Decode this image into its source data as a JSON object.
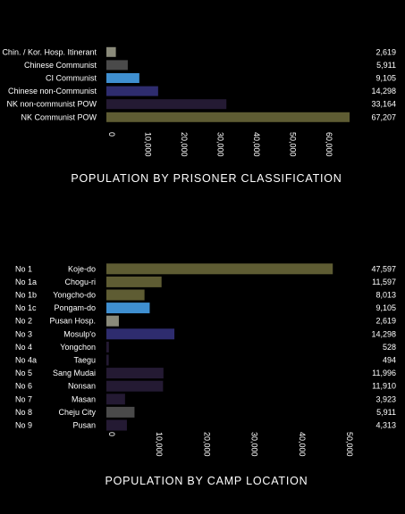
{
  "chart_data": [
    {
      "type": "bar",
      "orientation": "horizontal",
      "title": "POPULATION BY PRISONER CLASSIFICATION",
      "categories": [
        "Chin. / Kor. Hosp. Itinerant",
        "Chinese Communist",
        "CI Communist",
        "Chinese non-Communist",
        "NK non-communist POW",
        "NK Communist POW"
      ],
      "values": [
        2619,
        5911,
        9105,
        14298,
        33164,
        67207
      ],
      "value_labels": [
        "2,619",
        "5,911",
        "9,105",
        "14,298",
        "33,164",
        "67,207"
      ],
      "colors": [
        "#8a8a7a",
        "#4a4a4a",
        "#3f8fd0",
        "#2e2c6e",
        "#241a33",
        "#5e5c33"
      ],
      "xlim": [
        0,
        67207
      ],
      "ticks": [
        0,
        10000,
        20000,
        30000,
        40000,
        50000,
        60000
      ],
      "tick_labels": [
        "0",
        "10,000",
        "20,000",
        "30,000",
        "40,000",
        "50,000",
        "60,000"
      ],
      "grid": false
    },
    {
      "type": "bar",
      "orientation": "horizontal",
      "title": "POPULATION BY CAMP LOCATION",
      "camp_numbers": [
        "No 1",
        "No 1a",
        "No 1b",
        "No 1c",
        "No 2",
        "No 3",
        "No 4",
        "No 4a",
        "No 5",
        "No 6",
        "No 7",
        "No 8",
        "No 9"
      ],
      "categories": [
        "Koje-do",
        "Chogu-ri",
        "Yongcho-do",
        "Pongam-do",
        "Pusan Hosp.",
        "Mosulp'o",
        "Yongchon",
        "Taegu",
        "Sang Mudai",
        "Nonsan",
        "Masan",
        "Cheju City",
        "Pusan"
      ],
      "values": [
        47597,
        11597,
        8013,
        9105,
        2619,
        14298,
        528,
        494,
        11996,
        11910,
        3923,
        5911,
        4313
      ],
      "value_labels": [
        "47,597",
        "11,597",
        "8,013",
        "9,105",
        "2,619",
        "14,298",
        "528",
        "494",
        "11,996",
        "11,910",
        "3,923",
        "5,911",
        "4,313"
      ],
      "colors": [
        "#5e5c33",
        "#5e5c33",
        "#5e5c33",
        "#3f8fd0",
        "#8a8a7a",
        "#2e2c6e",
        "#241a33",
        "#241a33",
        "#241a33",
        "#241a33",
        "#241a33",
        "#4a4a4a",
        "#241a33"
      ],
      "xlim": [
        0,
        50000
      ],
      "ticks": [
        0,
        10000,
        20000,
        30000,
        40000,
        50000
      ],
      "tick_labels": [
        "0",
        "10,000",
        "20,000",
        "30,000",
        "40,000",
        "50,000"
      ],
      "grid": false
    }
  ]
}
